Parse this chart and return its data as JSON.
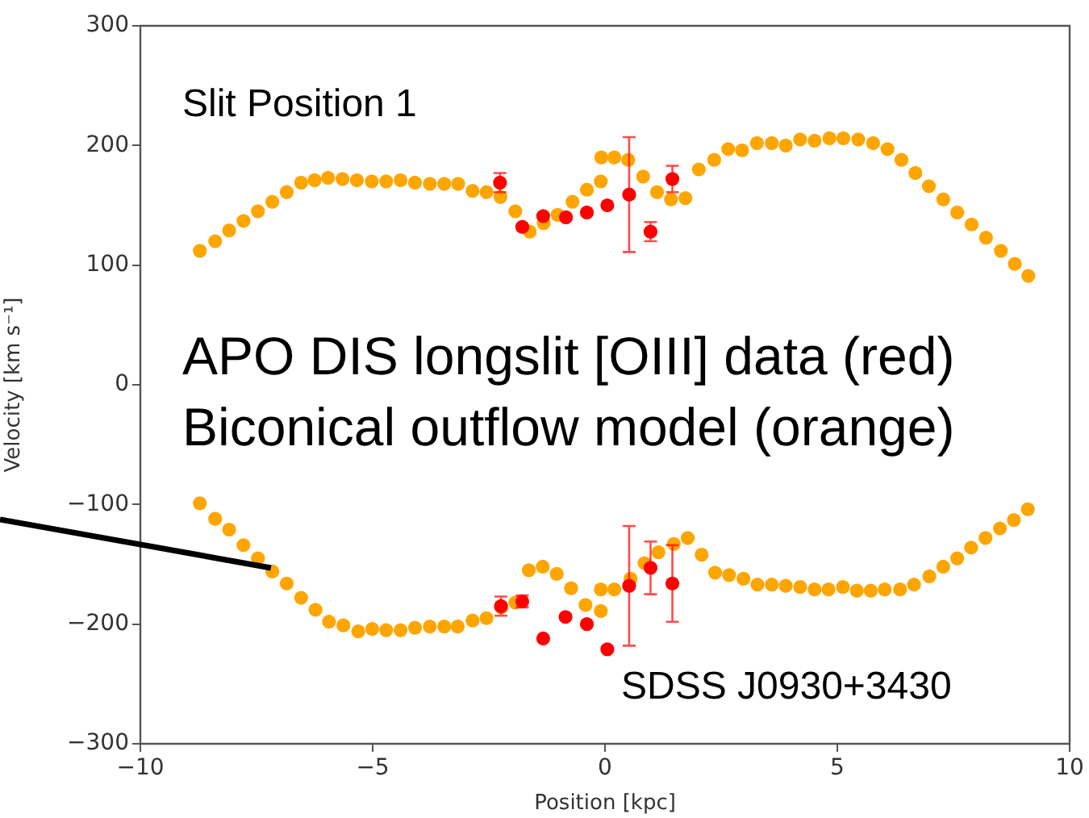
{
  "chart_data": {
    "type": "scatter",
    "xlabel": "Position [kpc]",
    "ylabel": "Velocity [km s⁻¹]",
    "xlim": [
      -10,
      10
    ],
    "ylim": [
      -300,
      300
    ],
    "xticks": [
      {
        "value": -10,
        "label": "−10"
      },
      {
        "value": -5,
        "label": "−5"
      },
      0,
      5,
      10
    ],
    "yticks": [
      {
        "value": -300,
        "label": "−300"
      },
      {
        "value": -200,
        "label": "−200"
      },
      {
        "value": -100,
        "label": "−100"
      },
      0,
      100,
      200,
      300
    ],
    "grid": false,
    "legend": false,
    "marker": "circle",
    "annotations": [
      "Slit Position 1",
      "APO DIS longslit [OIII] data (red)",
      "Biconical outflow model (orange)",
      "SDSS J0930+3430"
    ],
    "series": [
      {
        "color": "#ffa500",
        "x": [
          -8.72,
          -8.39,
          -8.09,
          -7.78,
          -7.47,
          -7.16,
          -6.85,
          -6.54,
          -6.25,
          -5.96,
          -5.65,
          -5.34,
          -5.02,
          -4.71,
          -4.4,
          -4.09,
          -3.77,
          -3.46,
          -3.16,
          -2.85,
          -2.55,
          -2.25,
          -1.93,
          -1.62,
          -1.32,
          -1.02,
          -0.7,
          -0.39,
          -0.09,
          -0.08,
          0.2,
          0.5,
          0.82,
          1.12,
          1.42,
          1.73,
          2.02,
          2.35,
          2.65,
          2.95,
          3.27,
          3.59,
          3.89,
          4.2,
          4.51,
          4.83,
          5.13,
          5.45,
          5.77,
          6.08,
          6.38,
          6.68,
          6.97,
          7.28,
          7.58,
          7.89,
          8.2,
          8.52,
          8.82,
          9.11,
          -8.72,
          -8.39,
          -8.09,
          -7.78,
          -7.47,
          -7.16,
          -6.85,
          -6.54,
          -6.23,
          -5.94,
          -5.63,
          -5.31,
          -5.01,
          -4.71,
          -4.4,
          -4.09,
          -3.77,
          -3.46,
          -3.17,
          -2.85,
          -2.55,
          -2.23,
          -1.93,
          -1.64,
          -1.34,
          -1.04,
          -0.73,
          -0.42,
          -0.09,
          -0.09,
          0.2,
          0.55,
          0.85,
          1.15,
          1.48,
          1.78,
          2.08,
          2.37,
          2.67,
          2.98,
          3.28,
          3.59,
          3.89,
          4.2,
          4.51,
          4.81,
          5.12,
          5.42,
          5.72,
          6.02,
          6.35,
          6.65,
          6.98,
          7.28,
          7.58,
          7.88,
          8.19,
          8.5,
          8.8,
          9.1
        ],
        "values": [
          112,
          120,
          129,
          137,
          145,
          153,
          161,
          169,
          171,
          173,
          172,
          171,
          170,
          170,
          171,
          169,
          168,
          168,
          168,
          162,
          161,
          157,
          145,
          128,
          135,
          142,
          153,
          163,
          170,
          190,
          190,
          188,
          174,
          161,
          155,
          156,
          180,
          188,
          197,
          196,
          202,
          202,
          200,
          205,
          204,
          206,
          206,
          205,
          202,
          197,
          188,
          177,
          166,
          155,
          144,
          134,
          123,
          112,
          101,
          91,
          -99,
          -112,
          -121,
          -134,
          -145,
          -156,
          -166,
          -178,
          -188,
          -198,
          -201,
          -206,
          -204,
          -205,
          -205,
          -203,
          -202,
          -202,
          -202,
          -197,
          -195,
          -186,
          -182,
          -155,
          -152,
          -158,
          -170,
          -184,
          -189,
          -171,
          -171,
          -162,
          -149,
          -140,
          -133,
          -128,
          -142,
          -157,
          -159,
          -162,
          -167,
          -167,
          -168,
          -169,
          -171,
          -171,
          -169,
          -172,
          -172,
          -171,
          -171,
          -167,
          -160,
          -152,
          -145,
          -136,
          -128,
          -120,
          -113,
          -104
        ]
      },
      {
        "color": "#ff0000",
        "x": [
          -2.26,
          -1.78,
          -1.33,
          -0.84,
          -0.39,
          0.05,
          0.52,
          0.98,
          1.45
        ],
        "values": [
          169,
          132,
          141,
          140,
          144,
          150,
          159,
          128,
          172
        ],
        "errors": [
          8,
          null,
          null,
          null,
          null,
          null,
          48,
          8,
          11
        ]
      },
      {
        "type": "line",
        "color": "#000000",
        "marker": "none",
        "x": [
          -10,
          -7.19
        ],
        "values": [
          -133.5,
          -153
        ]
      },
      {
        "color": "#ff0000",
        "x": [
          -2.24,
          -1.78,
          -1.33,
          -0.85,
          -0.39,
          0.05,
          0.52,
          0.98,
          1.45
        ],
        "values": [
          -185,
          -181,
          -212,
          -194,
          -200,
          -221,
          -168,
          -153,
          -166
        ],
        "errors": [
          8,
          5,
          null,
          null,
          null,
          null,
          50,
          22,
          32
        ]
      }
    ]
  }
}
